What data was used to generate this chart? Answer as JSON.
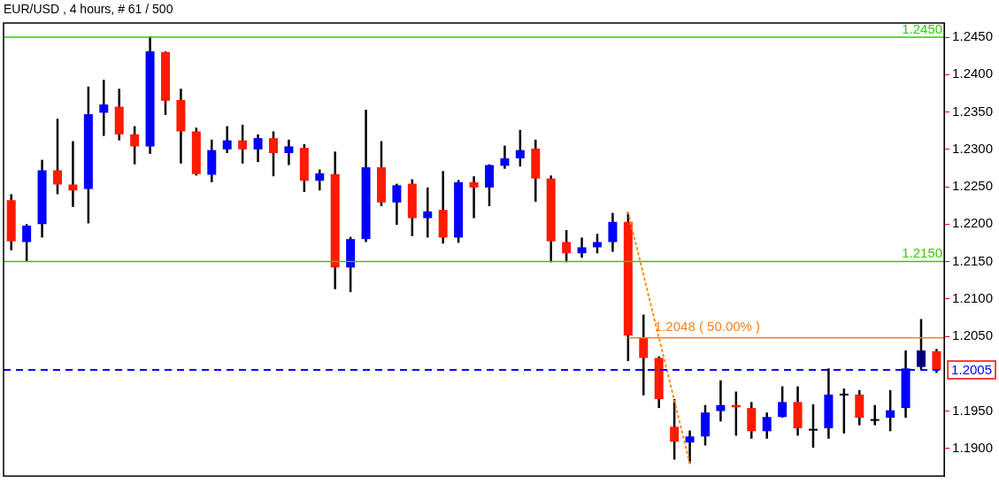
{
  "chart_data": {
    "type": "candlestick",
    "title": "EUR/USD , 4 hours, # 61 / 500",
    "categories": [
      null,
      null,
      null,
      null,
      null,
      null,
      null,
      null,
      null,
      null,
      null,
      null,
      null,
      null,
      null,
      null,
      null,
      null,
      null,
      null,
      null,
      null,
      null,
      null,
      null,
      null,
      null,
      null,
      null,
      null,
      null,
      null,
      null,
      null,
      null,
      null,
      null,
      null,
      null,
      null,
      null,
      null,
      null,
      null,
      null,
      null,
      null,
      null,
      null,
      null,
      null,
      null,
      null,
      null,
      null,
      null,
      null,
      null,
      null,
      null,
      null
    ],
    "ohlc": [
      [
        1.2232,
        1.224,
        1.2165,
        1.2177
      ],
      [
        1.2176,
        1.22,
        1.215,
        1.2198
      ],
      [
        1.22,
        1.2286,
        1.2182,
        1.2272
      ],
      [
        1.2272,
        1.2341,
        1.224,
        1.2253
      ],
      [
        1.2253,
        1.2311,
        1.2223,
        1.2245
      ],
      [
        1.2247,
        1.2384,
        1.2201,
        1.2347
      ],
      [
        1.2349,
        1.2393,
        1.2318,
        1.236
      ],
      [
        1.2357,
        1.2381,
        1.2312,
        1.232
      ],
      [
        1.232,
        1.2331,
        1.228,
        1.2304
      ],
      [
        1.2304,
        1.2451,
        1.2294,
        1.2431
      ],
      [
        1.243,
        1.2431,
        1.2346,
        1.2365
      ],
      [
        1.2366,
        1.2381,
        1.2281,
        1.2324
      ],
      [
        1.2324,
        1.2329,
        1.2265,
        1.2267
      ],
      [
        1.2266,
        1.2313,
        1.2256,
        1.2299
      ],
      [
        1.23,
        1.2331,
        1.2295,
        1.2312
      ],
      [
        1.2312,
        1.2333,
        1.2281,
        1.23
      ],
      [
        1.23,
        1.232,
        1.2283,
        1.2315
      ],
      [
        1.2315,
        1.2324,
        1.2264,
        1.2295
      ],
      [
        1.2295,
        1.2313,
        1.2279,
        1.2304
      ],
      [
        1.2302,
        1.2307,
        1.2243,
        1.2258
      ],
      [
        1.2258,
        1.2273,
        1.2245,
        1.2268
      ],
      [
        1.2267,
        1.2297,
        1.2113,
        1.2142
      ],
      [
        1.2142,
        1.2183,
        1.2109,
        1.218
      ],
      [
        1.218,
        1.2353,
        1.2176,
        1.2276
      ],
      [
        1.2276,
        1.2311,
        1.2224,
        1.2229
      ],
      [
        1.2229,
        1.2254,
        1.2199,
        1.2252
      ],
      [
        1.2254,
        1.226,
        1.2184,
        1.2208
      ],
      [
        1.2208,
        1.2249,
        1.2182,
        1.2217
      ],
      [
        1.2219,
        1.2271,
        1.2174,
        1.2182
      ],
      [
        1.2182,
        1.2259,
        1.2175,
        1.2256
      ],
      [
        1.2256,
        1.2264,
        1.2208,
        1.2249
      ],
      [
        1.2249,
        1.228,
        1.2224,
        1.2279
      ],
      [
        1.2278,
        1.2305,
        1.2274,
        1.2288
      ],
      [
        1.2288,
        1.2326,
        1.2277,
        1.2299
      ],
      [
        1.2301,
        1.2313,
        1.223,
        1.2261
      ],
      [
        1.2261,
        1.2265,
        1.2149,
        1.2177
      ],
      [
        1.2176,
        1.2192,
        1.2149,
        1.2161
      ],
      [
        1.2161,
        1.2182,
        1.2155,
        1.2169
      ],
      [
        1.2169,
        1.2187,
        1.2161,
        1.2176
      ],
      [
        1.2176,
        1.2215,
        1.2163,
        1.2203
      ],
      [
        1.2203,
        1.2216,
        1.2017,
        1.2051
      ],
      [
        1.2048,
        1.2079,
        1.1971,
        1.2021
      ],
      [
        1.2021,
        1.2023,
        1.1954,
        1.1966
      ],
      [
        1.1929,
        1.1966,
        1.1885,
        1.1909
      ],
      [
        1.1908,
        1.1924,
        1.188,
        1.1916
      ],
      [
        1.1916,
        1.1958,
        1.1904,
        1.1948
      ],
      [
        1.195,
        1.1991,
        1.1936,
        1.1958
      ],
      [
        1.1958,
        1.1976,
        1.1917,
        1.1955
      ],
      [
        1.1954,
        1.1962,
        1.1913,
        1.1923
      ],
      [
        1.1923,
        1.1948,
        1.1913,
        1.1942
      ],
      [
        1.1942,
        1.1983,
        1.1941,
        1.1962
      ],
      [
        1.1962,
        1.1983,
        1.1917,
        1.1927
      ],
      [
        1.1925,
        1.1959,
        1.1901,
        1.1925
      ],
      [
        1.1927,
        1.2007,
        1.1913,
        1.1972
      ],
      [
        1.1972,
        1.198,
        1.192,
        1.1972
      ],
      [
        1.1972,
        1.1978,
        1.1931,
        1.1941
      ],
      [
        1.1938,
        1.1958,
        1.1931,
        1.1938
      ],
      [
        1.1941,
        1.1978,
        1.1923,
        1.1951
      ],
      [
        1.1954,
        1.2031,
        1.1941,
        1.2007
      ],
      [
        1.2009,
        1.2073,
        1.2006,
        1.2031
      ],
      [
        1.203,
        1.2033,
        1.2001,
        1.2005
      ]
    ],
    "colors": [
      "#ff1a00",
      "#0000ff",
      "#0000ff",
      "#ff1a00",
      "#ff1a00",
      "#0000ff",
      "#0000ff",
      "#ff1a00",
      "#ff1a00",
      "#0000ff",
      "#ff1a00",
      "#ff1a00",
      "#ff1a00",
      "#0000ff",
      "#0000ff",
      "#ff1a00",
      "#0000ff",
      "#ff1a00",
      "#0000ff",
      "#ff1a00",
      "#0000ff",
      "#ff1a00",
      "#0000ff",
      "#0000ff",
      "#ff1a00",
      "#0000ff",
      "#ff1a00",
      "#0000ff",
      "#ff1a00",
      "#0000ff",
      "#ff1a00",
      "#0000ff",
      "#0000ff",
      "#0000ff",
      "#ff1a00",
      "#ff1a00",
      "#ff1a00",
      "#0000ff",
      "#0000ff",
      "#0000ff",
      "#ff1a00",
      "#ff1a00",
      "#ff1a00",
      "#ff1a00",
      "#0000ff",
      "#0000ff",
      "#0000ff",
      "#ff1a00",
      "#ff1a00",
      "#0000ff",
      "#0000ff",
      "#ff1a00",
      "#000000",
      "#0000ff",
      "#000000",
      "#ff1a00",
      "#000000",
      "#0000ff",
      "#0000ff",
      "#000080",
      "#ff1a00"
    ],
    "series": [
      {
        "type": "line",
        "color": "#ff8c1a",
        "line_style": "dotted",
        "values": [
          null,
          null,
          null,
          null,
          null,
          null,
          null,
          null,
          null,
          null,
          null,
          null,
          null,
          null,
          null,
          null,
          null,
          null,
          null,
          null,
          null,
          null,
          null,
          null,
          null,
          null,
          null,
          null,
          null,
          null,
          null,
          null,
          null,
          null,
          null,
          null,
          null,
          null,
          null,
          null,
          1.2216,
          null,
          null,
          null,
          1.188,
          null,
          null,
          null,
          null,
          null,
          null,
          null,
          null,
          null,
          null,
          null,
          null,
          null,
          null,
          null,
          null
        ]
      }
    ],
    "ylim": [
      1.1863,
      1.2469
    ],
    "yticks": [
      {
        "value": 1.19,
        "label": "1.1900"
      },
      {
        "value": 1.195,
        "label": "1.1950"
      },
      {
        "value": 1.205,
        "label": "1.2050"
      },
      {
        "value": 1.21,
        "label": "1.2100"
      },
      {
        "value": 1.215,
        "label": "1.2150"
      },
      {
        "value": 1.22,
        "label": "1.2200"
      },
      {
        "value": 1.225,
        "label": "1.2250"
      },
      {
        "value": 1.23,
        "label": "1.2300"
      },
      {
        "value": 1.235,
        "label": "1.2350"
      },
      {
        "value": 1.24,
        "label": "1.2400"
      },
      {
        "value": 1.245,
        "label": "1.2450"
      }
    ],
    "ref_lines": [
      {
        "axis": "y",
        "value": 1.245,
        "label": "1.2450",
        "color": "#33cc00"
      },
      {
        "axis": "y",
        "value": 1.215,
        "label": "1.2150",
        "color": "#33cc00"
      },
      {
        "axis": "y",
        "value": 1.2048,
        "label": "1.2048 ( 50.00% )",
        "color": "#ff7f1a"
      },
      {
        "axis": "y",
        "value": 1.2005,
        "label": "1.2005",
        "color": "#0000ff",
        "line_style": "dashed"
      }
    ],
    "grid": false,
    "legend": false
  }
}
